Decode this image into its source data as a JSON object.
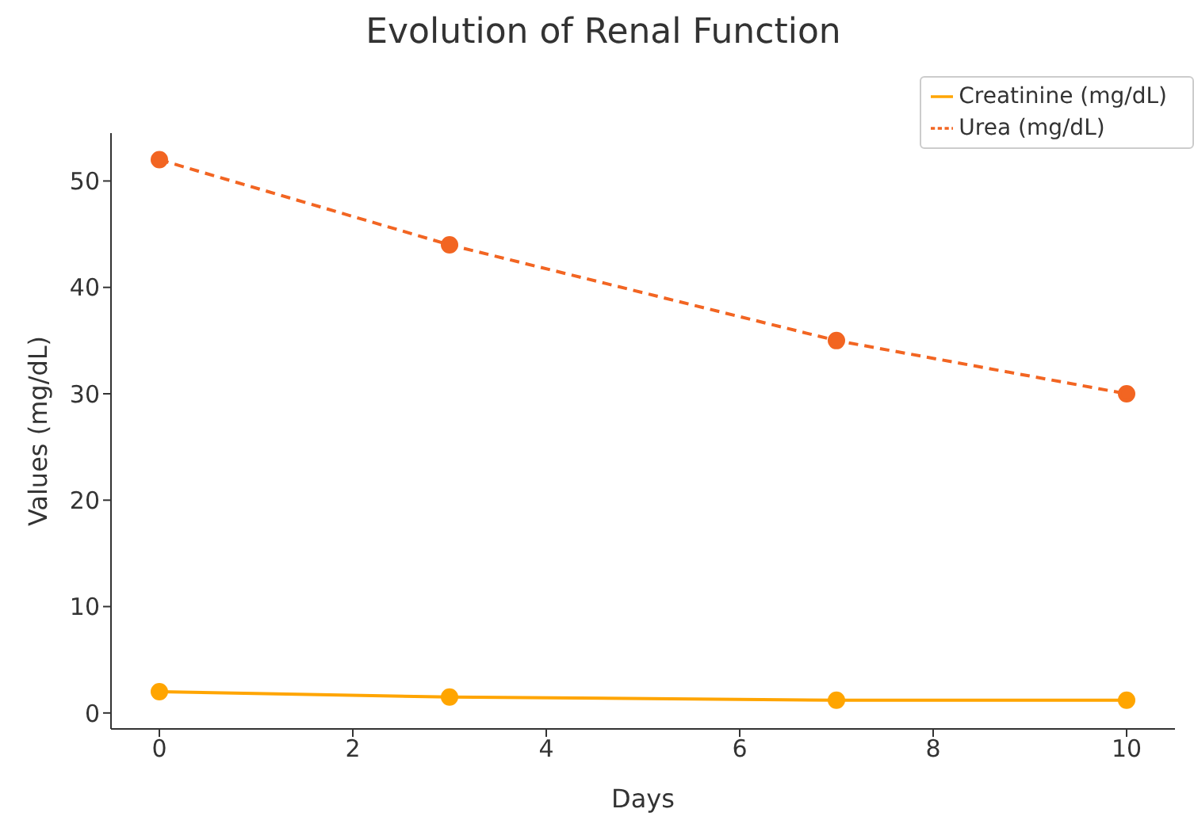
{
  "chart_data": {
    "type": "line",
    "title": "Evolution of Renal Function",
    "xlabel": "Days",
    "ylabel": "Values (mg/dL)",
    "x": [
      0,
      3,
      7,
      10
    ],
    "series": [
      {
        "name": "Creatinine (mg/dL)",
        "color": "#ffa500",
        "values": [
          2.0,
          1.5,
          1.2,
          1.2
        ],
        "line_style": "solid"
      },
      {
        "name": "Urea (mg/dL)",
        "color": "#f26522",
        "values": [
          52,
          44,
          35,
          30
        ],
        "line_style": "dashed"
      }
    ],
    "xlim": [
      -0.5,
      10.5
    ],
    "xticks": [
      0,
      2,
      4,
      6,
      8,
      10
    ],
    "ylim": [
      -1.5,
      54.5
    ],
    "yticks": [
      0,
      10,
      20,
      30,
      40,
      50
    ],
    "grid": false,
    "legend": "top right",
    "marker": "circle"
  }
}
